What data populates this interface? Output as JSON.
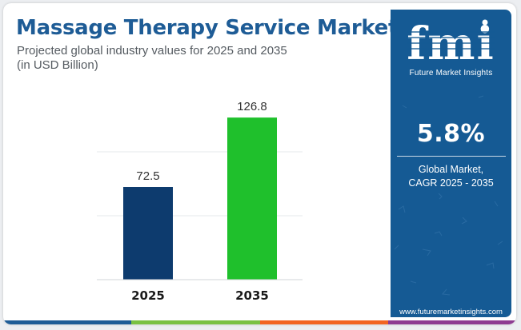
{
  "title": "Massage Therapy Service Market",
  "subtitle": "Projected global industry values for 2025 and 2035",
  "subtitle_unit": "(in USD Billion)",
  "chart_data": {
    "type": "bar",
    "categories": [
      "2025",
      "2035"
    ],
    "values": [
      72.5,
      126.8
    ],
    "data_labels": [
      "72.5",
      "126.8"
    ],
    "bar_colors": [
      "#0d3b6e",
      "#1fc02c"
    ],
    "ylim": [
      0,
      150
    ],
    "grid": true,
    "xlabel": "",
    "ylabel": ""
  },
  "sidebar": {
    "logo_text": "fmi",
    "logo_name": "Future Market Insights",
    "cagr_value": "5.8%",
    "cagr_label_line1": "Global Market,",
    "cagr_label_line2": "CAGR 2025 - 2035",
    "website": "www.futuremarketinsights.com"
  },
  "colors": {
    "title": "#1e5c96",
    "panel": "#155a94",
    "bottom_bar": [
      "#1e5c96",
      "#7ac143",
      "#f26522",
      "#8e3b91"
    ]
  },
  "icons": [
    "fmi-logo-icon"
  ]
}
